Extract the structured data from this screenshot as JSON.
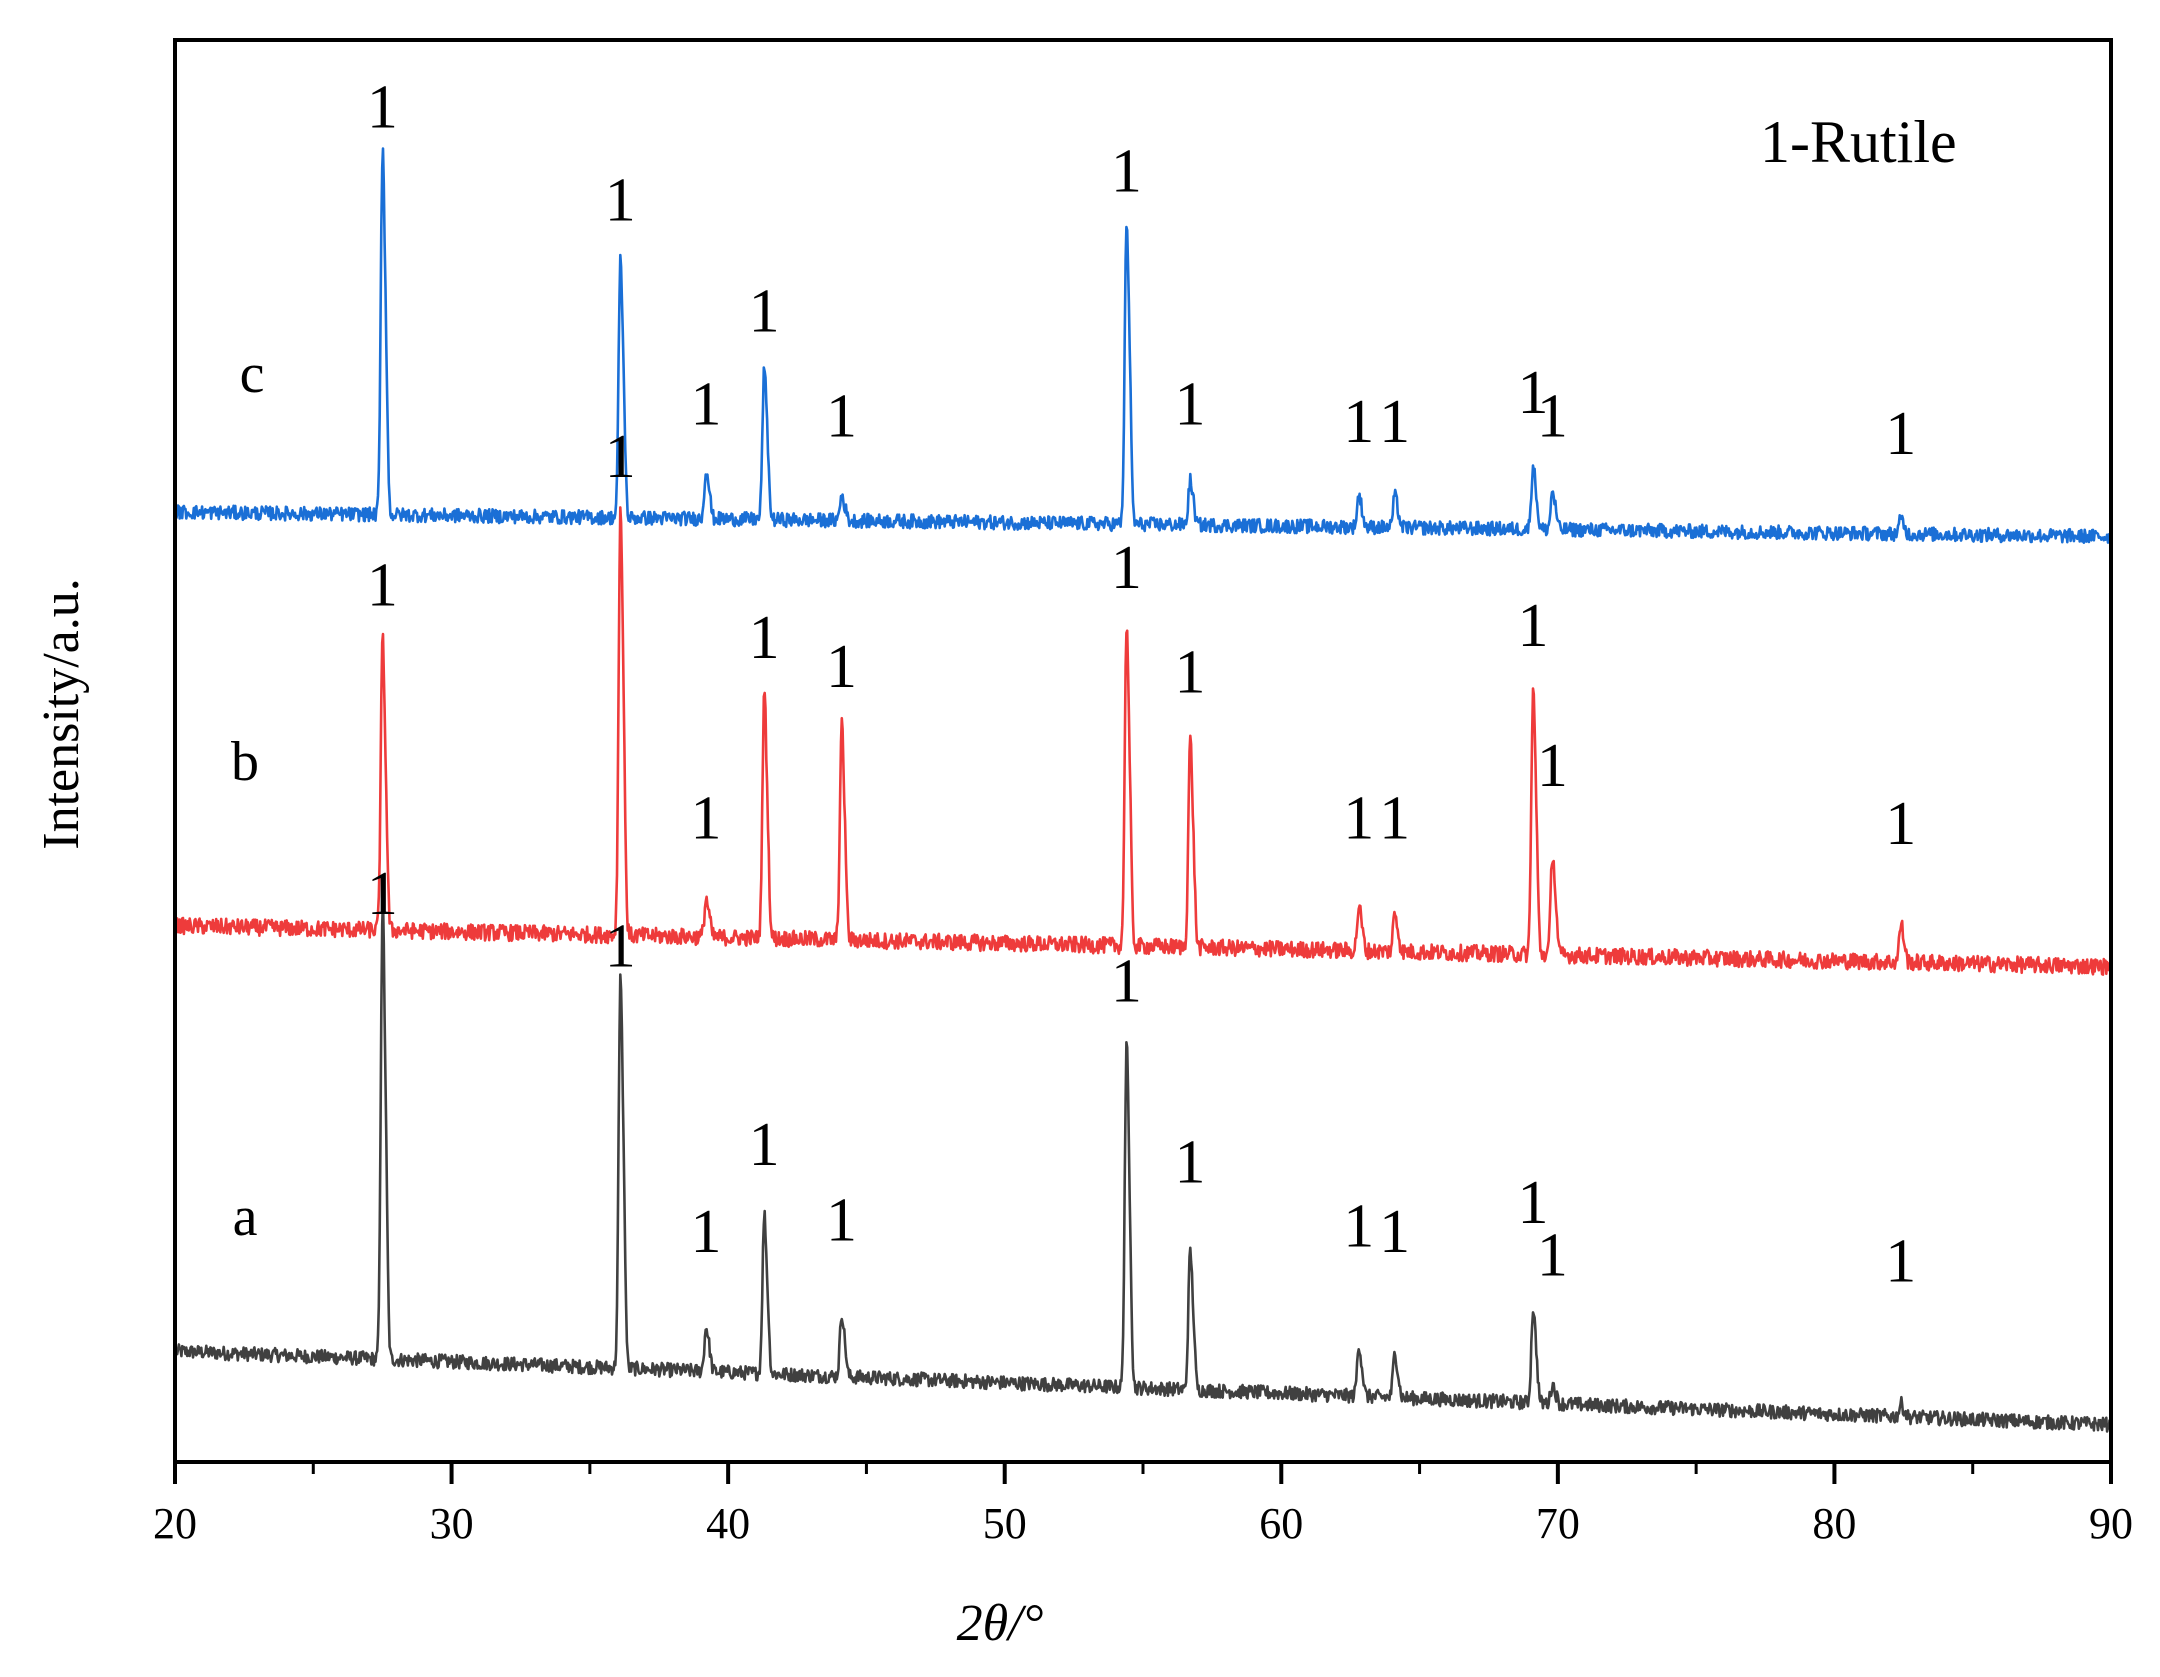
{
  "chart_data": {
    "type": "line",
    "xlabel": "2θ/°",
    "ylabel": "Intensity/a.u.",
    "xlim": [
      20,
      90
    ],
    "x_ticks": [
      20,
      30,
      40,
      50,
      60,
      70,
      80,
      90
    ],
    "x_minor_step": 5,
    "y_ticks": "none",
    "grid": false,
    "legend": {
      "text": "1-Rutile",
      "placement": "top-right"
    },
    "peak_marker": "1",
    "phase": "Rutile",
    "peaks_2theta": [
      27.5,
      36.1,
      39.2,
      41.3,
      44.1,
      54.4,
      56.7,
      62.8,
      64.1,
      69.1,
      69.8,
      82.4
    ],
    "series": [
      {
        "name": "a",
        "color": "#404040",
        "baseline": 0.95,
        "slope": -0.09,
        "noise": 0.06,
        "intensities": [
          3.6,
          3.1,
          0.35,
          1.25,
          0.5,
          2.7,
          1.1,
          0.4,
          0.35,
          0.75,
          0.15,
          0.1
        ],
        "label_marker_y": [
          3.75,
          3.3,
          0.85,
          1.6,
          0.95,
          3.0,
          1.45,
          0.9,
          0.85,
          1.1,
          0.65,
          0.6
        ]
      },
      {
        "name": "b",
        "color": "#ee3b3b",
        "baseline": 4.6,
        "slope": -0.05,
        "noise": 0.07,
        "intensities": [
          2.3,
          3.4,
          0.3,
          1.95,
          1.7,
          2.55,
          1.65,
          0.35,
          0.3,
          2.1,
          0.8,
          0.3
        ],
        "label_marker_y": [
          2.75,
          3.85,
          0.75,
          2.3,
          2.05,
          2.9,
          2.0,
          0.75,
          0.75,
          2.4,
          1.2,
          0.7
        ]
      },
      {
        "name": "c",
        "color": "#1a6fd6",
        "baseline": 8.15,
        "slope": -0.03,
        "noise": 0.06,
        "intensities": [
          2.9,
          2.05,
          0.4,
          1.2,
          0.2,
          2.4,
          0.35,
          0.25,
          0.25,
          0.5,
          0.3,
          0.12
        ],
        "label_marker_y": [
          3.3,
          2.5,
          0.75,
          1.55,
          0.65,
          2.75,
          0.75,
          0.6,
          0.6,
          0.85,
          0.65,
          0.5
        ]
      }
    ]
  }
}
